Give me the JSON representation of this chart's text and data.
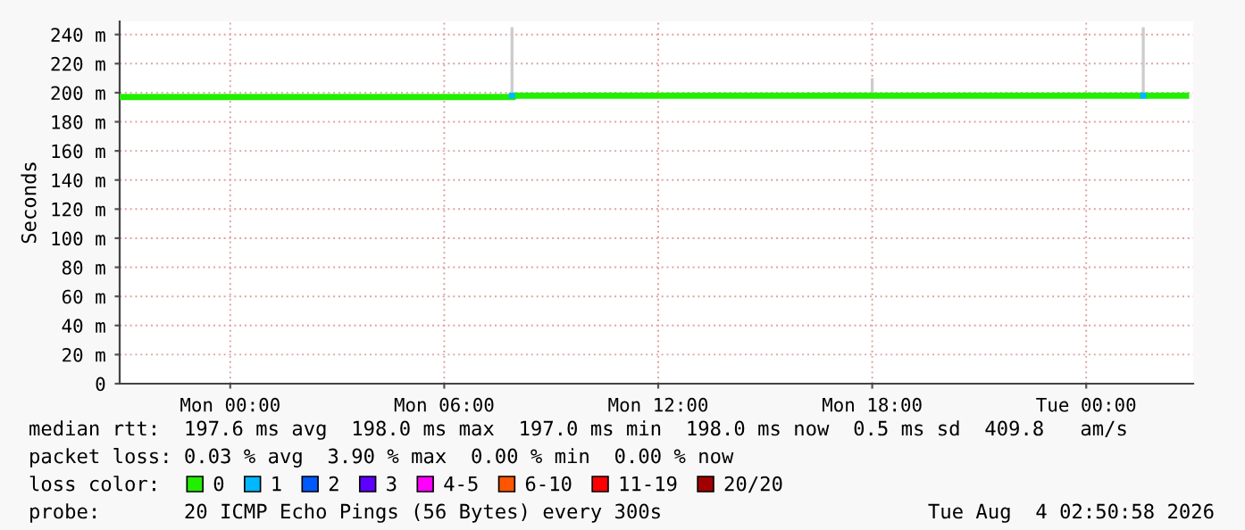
{
  "chart_data": {
    "type": "step",
    "ylabel": "Seconds",
    "legend_title": "loss color:",
    "legend": "bottom",
    "grid": true,
    "xlim": [
      "2026-08-02T20:54",
      "2026-08-04T03:00"
    ],
    "xticks": [
      {
        "value": "2026-08-03T00:00",
        "label": "Mon 00:00"
      },
      {
        "value": "2026-08-03T06:00",
        "label": "Mon 06:00"
      },
      {
        "value": "2026-08-03T12:00",
        "label": "Mon 12:00"
      },
      {
        "value": "2026-08-03T18:00",
        "label": "Mon 18:00"
      },
      {
        "value": "2026-08-04T00:00",
        "label": "Tue 00:00"
      }
    ],
    "ylim": [
      0,
      249
    ],
    "yticks": [
      0,
      {
        "value": 20,
        "label": "20 m"
      },
      {
        "value": 40,
        "label": "40 m"
      },
      {
        "value": 60,
        "label": "60 m"
      },
      {
        "value": 80,
        "label": "80 m"
      },
      {
        "value": 100,
        "label": "100 m"
      },
      {
        "value": 120,
        "label": "120 m"
      },
      {
        "value": 140,
        "label": "140 m"
      },
      {
        "value": 160,
        "label": "160 m"
      },
      {
        "value": 180,
        "label": "180 m"
      },
      {
        "value": 200,
        "label": "200 m"
      },
      {
        "value": 220,
        "label": "220 m"
      },
      {
        "value": 240,
        "label": "240 m"
      }
    ],
    "series": [
      {
        "name": "0",
        "color": "#22ee00",
        "x": [
          "2026-08-02T20:54",
          "2026-08-03T07:51",
          "2026-08-03T07:57",
          "2026-08-03T17:54",
          "2026-08-03T18:06",
          "2026-08-04T01:33",
          "2026-08-04T01:39",
          "2026-08-04T02:48"
        ],
        "values": [
          197,
          197,
          198,
          198,
          198,
          198,
          198,
          198
        ]
      },
      {
        "type": "bar",
        "color": "#cccccc",
        "x": [
          "2026-08-03T07:54",
          "2026-08-03T18:00",
          "2026-08-04T01:36"
        ],
        "base": [
          198,
          198,
          198
        ],
        "values": [
          47,
          12,
          47
        ]
      },
      {
        "name": "1",
        "type": "scatter",
        "color": "#00b8ff",
        "x": [
          "2026-08-03T07:54",
          "2026-08-04T01:36"
        ],
        "values": [
          198,
          198
        ]
      },
      {
        "name": "2",
        "type": "scatter",
        "color": "#0059ff"
      },
      {
        "name": "3",
        "type": "scatter",
        "color": "#5e00ff"
      },
      {
        "name": "4-5",
        "type": "scatter",
        "color": "#ff00ff"
      },
      {
        "name": "6-10",
        "type": "scatter",
        "color": "#ff5500"
      },
      {
        "name": "11-19",
        "type": "scatter",
        "color": "#ff0000"
      },
      {
        "name": "20/20",
        "type": "scatter",
        "color": "#a10000"
      }
    ],
    "annotations": [
      "median rtt:  197.6 ms avg  198.0 ms max  197.0 ms min  198.0 ms now  0.5 ms sd  409.8   am/s",
      "packet loss: 0.03 % avg  3.90 % max  0.00 % min  0.00 % now",
      "probe:       20 ICMP Echo Pings (56 Bytes) every 300s",
      "Tue Aug  4 02:50:58 2026"
    ]
  }
}
